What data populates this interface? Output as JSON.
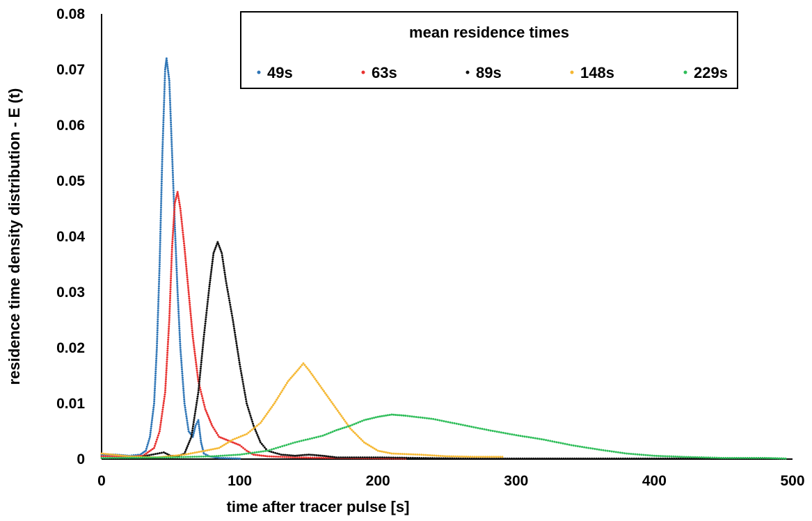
{
  "chart_data": {
    "type": "scatter",
    "title": "",
    "xlabel": "time after tracer pulse [s]",
    "ylabel": "residence time density distribution - E (t)",
    "xlim": [
      0,
      500
    ],
    "ylim": [
      0,
      0.08
    ],
    "x_ticks": [
      "0",
      "100",
      "200",
      "300",
      "400",
      "500"
    ],
    "y_ticks": [
      "0",
      "0.01",
      "0.02",
      "0.03",
      "0.04",
      "0.05",
      "0.06",
      "0.07",
      "0.08"
    ],
    "grid": false,
    "legend": {
      "title": "mean residence times",
      "placement": "top-center"
    },
    "series": [
      {
        "name": "49s",
        "color": "#2e75b6",
        "points": [
          [
            0,
            0.0008
          ],
          [
            10,
            0.0008
          ],
          [
            20,
            0.0006
          ],
          [
            28,
            0.0008
          ],
          [
            32,
            0.0015
          ],
          [
            35,
            0.004
          ],
          [
            38,
            0.01
          ],
          [
            40,
            0.02
          ],
          [
            42,
            0.035
          ],
          [
            44,
            0.055
          ],
          [
            46,
            0.07
          ],
          [
            47,
            0.072
          ],
          [
            49,
            0.068
          ],
          [
            51,
            0.055
          ],
          [
            53,
            0.042
          ],
          [
            55,
            0.03
          ],
          [
            57,
            0.02
          ],
          [
            60,
            0.01
          ],
          [
            63,
            0.005
          ],
          [
            66,
            0.004
          ],
          [
            68,
            0.006
          ],
          [
            70,
            0.007
          ],
          [
            72,
            0.003
          ],
          [
            74,
            0.001
          ],
          [
            78,
            0.0005
          ],
          [
            85,
            0.0002
          ],
          [
            100,
            0.0001
          ]
        ]
      },
      {
        "name": "63s",
        "color": "#e8312f",
        "points": [
          [
            0,
            0.0005
          ],
          [
            20,
            0.0004
          ],
          [
            30,
            0.0006
          ],
          [
            38,
            0.002
          ],
          [
            42,
            0.005
          ],
          [
            46,
            0.012
          ],
          [
            49,
            0.025
          ],
          [
            51,
            0.038
          ],
          [
            53,
            0.046
          ],
          [
            55,
            0.048
          ],
          [
            57,
            0.045
          ],
          [
            60,
            0.038
          ],
          [
            63,
            0.03
          ],
          [
            66,
            0.022
          ],
          [
            70,
            0.014
          ],
          [
            75,
            0.009
          ],
          [
            80,
            0.006
          ],
          [
            85,
            0.004
          ],
          [
            90,
            0.0035
          ],
          [
            95,
            0.003
          ],
          [
            100,
            0.0025
          ],
          [
            105,
            0.0015
          ],
          [
            110,
            0.0008
          ],
          [
            120,
            0.0005
          ],
          [
            140,
            0.0003
          ],
          [
            170,
            0.0002
          ],
          [
            220,
            0.0001
          ]
        ]
      },
      {
        "name": "89s",
        "color": "#111111",
        "points": [
          [
            30,
            0.0005
          ],
          [
            45,
            0.0012
          ],
          [
            50,
            0.0006
          ],
          [
            55,
            0.0005
          ],
          [
            60,
            0.001
          ],
          [
            65,
            0.004
          ],
          [
            70,
            0.012
          ],
          [
            74,
            0.022
          ],
          [
            78,
            0.031
          ],
          [
            81,
            0.037
          ],
          [
            84,
            0.039
          ],
          [
            87,
            0.037
          ],
          [
            90,
            0.032
          ],
          [
            95,
            0.025
          ],
          [
            100,
            0.017
          ],
          [
            105,
            0.01
          ],
          [
            110,
            0.006
          ],
          [
            115,
            0.003
          ],
          [
            120,
            0.0015
          ],
          [
            130,
            0.0008
          ],
          [
            140,
            0.0006
          ],
          [
            150,
            0.0008
          ],
          [
            160,
            0.0006
          ],
          [
            170,
            0.0003
          ],
          [
            200,
            0.0003
          ],
          [
            230,
            0.0002
          ],
          [
            260,
            0.0001
          ],
          [
            300,
            0.0001
          ],
          [
            350,
            0.0001
          ],
          [
            440,
            0.0001
          ]
        ]
      },
      {
        "name": "148s",
        "color": "#f5b731",
        "points": [
          [
            0,
            0.001
          ],
          [
            20,
            0.0005
          ],
          [
            40,
            0.0003
          ],
          [
            60,
            0.0008
          ],
          [
            75,
            0.0015
          ],
          [
            85,
            0.002
          ],
          [
            95,
            0.0035
          ],
          [
            105,
            0.0045
          ],
          [
            115,
            0.0065
          ],
          [
            125,
            0.01
          ],
          [
            135,
            0.014
          ],
          [
            142,
            0.016
          ],
          [
            146,
            0.0172
          ],
          [
            150,
            0.016
          ],
          [
            160,
            0.0125
          ],
          [
            170,
            0.009
          ],
          [
            180,
            0.0055
          ],
          [
            190,
            0.003
          ],
          [
            200,
            0.0015
          ],
          [
            210,
            0.001
          ],
          [
            230,
            0.0008
          ],
          [
            250,
            0.0005
          ],
          [
            270,
            0.0004
          ],
          [
            290,
            0.0004
          ]
        ]
      },
      {
        "name": "229s",
        "color": "#2ebd59",
        "points": [
          [
            0,
            0.0002
          ],
          [
            50,
            0.0003
          ],
          [
            80,
            0.0005
          ],
          [
            100,
            0.0008
          ],
          [
            120,
            0.0015
          ],
          [
            140,
            0.003
          ],
          [
            160,
            0.0042
          ],
          [
            170,
            0.0052
          ],
          [
            180,
            0.006
          ],
          [
            190,
            0.007
          ],
          [
            200,
            0.0076
          ],
          [
            210,
            0.008
          ],
          [
            220,
            0.0078
          ],
          [
            240,
            0.0072
          ],
          [
            260,
            0.0062
          ],
          [
            280,
            0.0052
          ],
          [
            300,
            0.0043
          ],
          [
            320,
            0.0035
          ],
          [
            340,
            0.0025
          ],
          [
            360,
            0.0017
          ],
          [
            380,
            0.001
          ],
          [
            400,
            0.0006
          ],
          [
            420,
            0.0004
          ],
          [
            450,
            0.0002
          ],
          [
            480,
            0.0002
          ],
          [
            495,
            0.0001
          ]
        ]
      }
    ]
  }
}
